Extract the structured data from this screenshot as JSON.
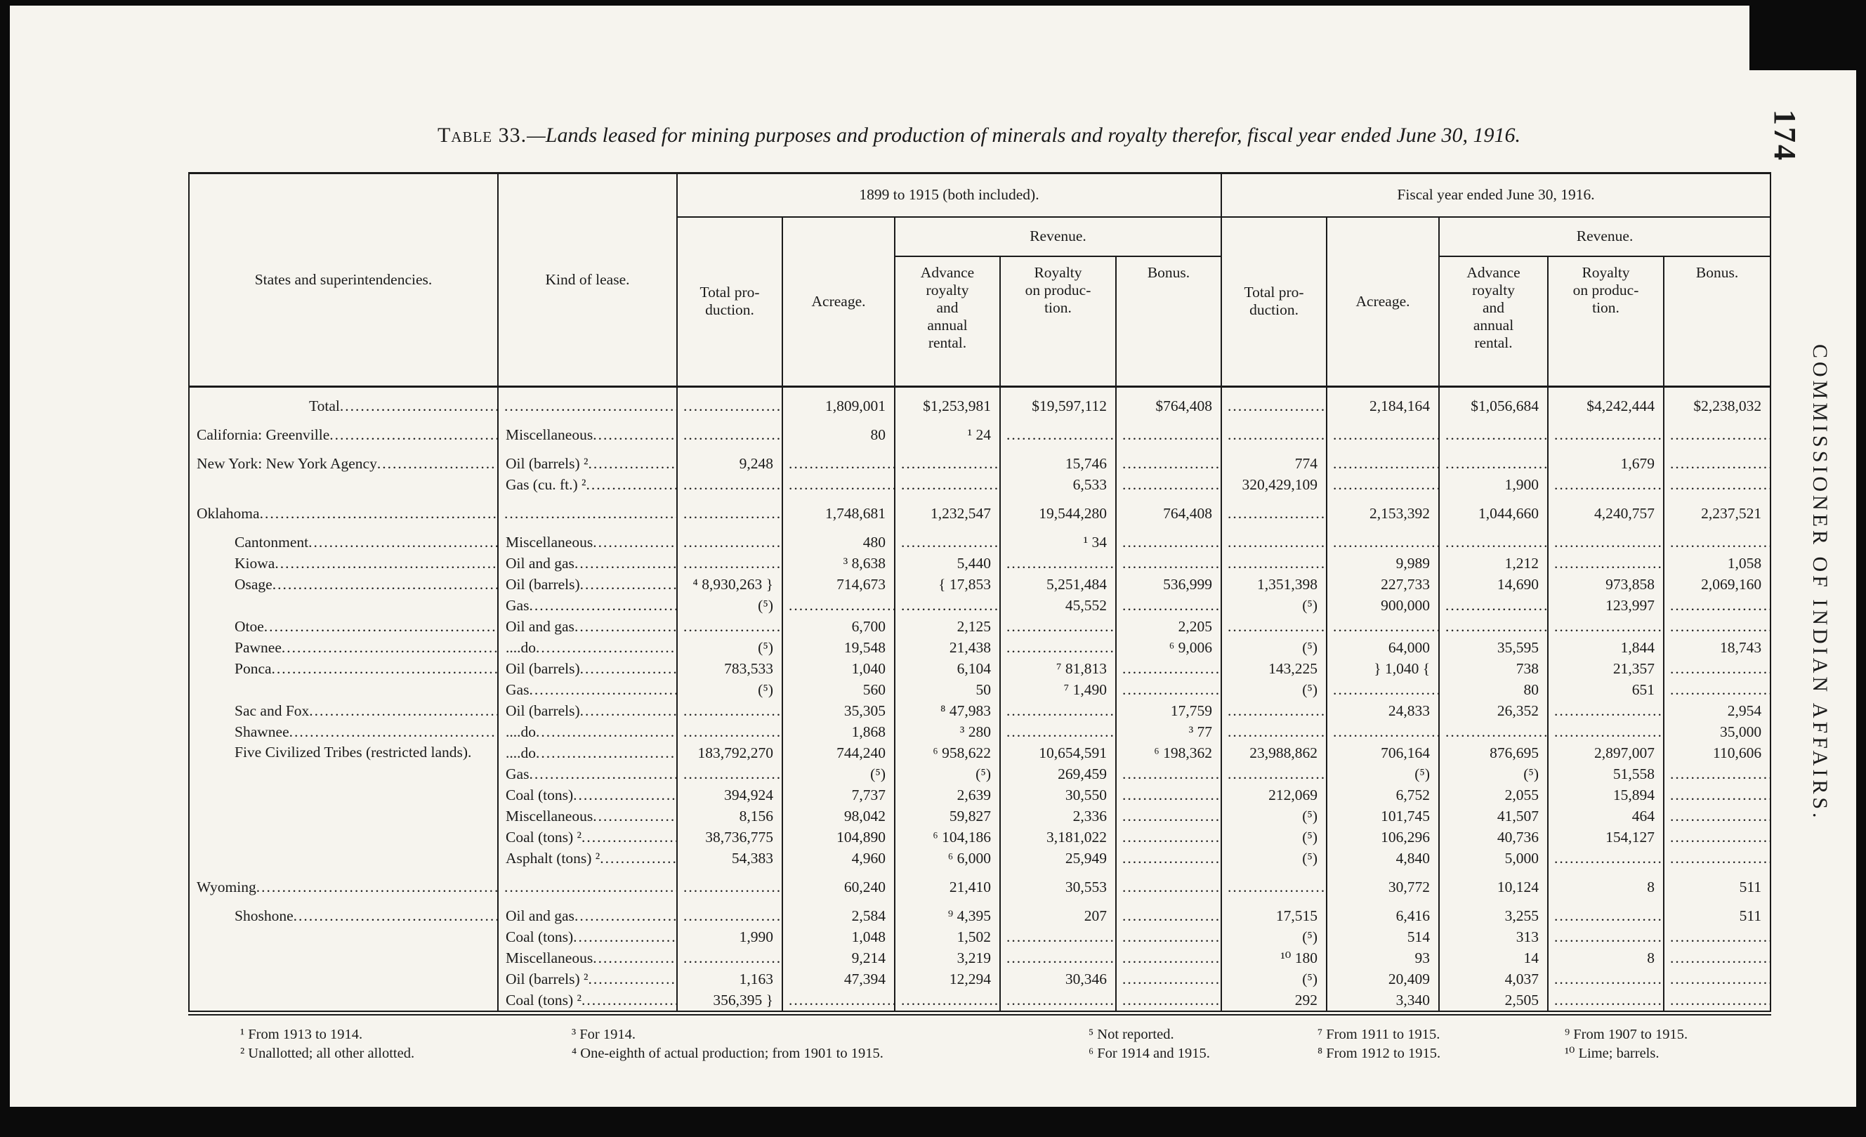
{
  "page": {
    "number": "174",
    "side_text": "COMMISSIONER OF INDIAN AFFAIRS.",
    "title_label": "Table 33.",
    "title_text": "—Lands leased for mining purposes and production of minerals and royalty therefor, fiscal year ended June 30, 1916."
  },
  "table": {
    "headers": {
      "states": "States and superintendencies.",
      "kind": "Kind of lease.",
      "group1": "1899 to 1915 (both included).",
      "group2": "Fiscal year ended June 30, 1916.",
      "revenue": "Revenue.",
      "total_production": "Total pro-\nduction.",
      "acreage": "Acreage.",
      "advance": "Advance\nroyalty\nand\nannual\nrental.",
      "royalty": "Royalty\non produc-\ntion.",
      "bonus": "Bonus."
    },
    "rows": [
      {
        "s": "Total",
        "k": "",
        "indent": 2,
        "gap": true,
        "c": [
          "",
          "1,809,001",
          "$1,253,981",
          "$19,597,112",
          "$764,408",
          "",
          "2,184,164",
          "$1,056,684",
          "$4,242,444",
          "$2,238,032"
        ]
      },
      {
        "s": "California: Greenville",
        "k": "Miscellaneous",
        "indent": 0,
        "gap": true,
        "c": [
          "",
          "80",
          "¹ 24",
          "",
          "",
          "",
          "",
          "",
          "",
          ""
        ]
      },
      {
        "s": "New York: New York Agency",
        "k": "Oil (barrels) ²",
        "indent": 0,
        "gap": true,
        "c": [
          "9,248",
          "",
          "",
          "15,746",
          "",
          "774",
          "",
          "",
          "1,679",
          ""
        ]
      },
      {
        "s": "",
        "k": "Gas (cu. ft.) ²",
        "indent": 0,
        "c": [
          "",
          "",
          "",
          "6,533",
          "",
          "320,429,109",
          "",
          "1,900",
          "",
          ""
        ]
      },
      {
        "s": "Oklahoma",
        "k": "",
        "indent": 0,
        "gap": true,
        "c": [
          "",
          "1,748,681",
          "1,232,547",
          "19,544,280",
          "764,408",
          "",
          "2,153,392",
          "1,044,660",
          "4,240,757",
          "2,237,521"
        ]
      },
      {
        "s": "Cantonment",
        "k": "Miscellaneous",
        "indent": 1,
        "gap": true,
        "c": [
          "",
          "480",
          "",
          "¹ 34",
          "",
          "",
          "",
          "",
          "",
          ""
        ]
      },
      {
        "s": "Kiowa",
        "k": "Oil and gas",
        "indent": 1,
        "c": [
          "",
          "³ 8,638",
          "5,440",
          "",
          "",
          "",
          "9,989",
          "1,212",
          "",
          "1,058"
        ]
      },
      {
        "s": "Osage",
        "k": "Oil (barrels)",
        "indent": 1,
        "c": [
          "⁴ 8,930,263 }",
          "714,673",
          "{ 17,853",
          "5,251,484",
          "536,999",
          "1,351,398",
          "227,733",
          "14,690",
          "973,858",
          "2,069,160"
        ]
      },
      {
        "s": "",
        "k": "Gas",
        "indent": 1,
        "c": [
          "(⁵)",
          "",
          "",
          "45,552",
          "",
          "(⁵)",
          "900,000",
          "",
          "123,997",
          ""
        ]
      },
      {
        "s": "Otoe",
        "k": "Oil and gas",
        "indent": 1,
        "c": [
          "",
          "6,700",
          "2,125",
          "",
          "2,205",
          "",
          "",
          "",
          "",
          ""
        ]
      },
      {
        "s": "Pawnee",
        "k": "....do",
        "indent": 1,
        "c": [
          "(⁵)",
          "19,548",
          "21,438",
          "",
          "⁶ 9,006",
          "(⁵)",
          "64,000",
          "35,595",
          "1,844",
          "18,743"
        ]
      },
      {
        "s": "Ponca",
        "k": "Oil (barrels)",
        "indent": 1,
        "c": [
          "783,533",
          "1,040",
          "6,104",
          "⁷ 81,813",
          "",
          "143,225",
          "} 1,040 {",
          "738",
          "21,357",
          ""
        ]
      },
      {
        "s": "",
        "k": "Gas",
        "indent": 1,
        "c": [
          "(⁵)",
          "560",
          "50",
          "⁷ 1,490",
          "",
          "(⁵)",
          "",
          "80",
          "651",
          ""
        ]
      },
      {
        "s": "Sac and Fox",
        "k": "Oil (barrels)",
        "indent": 1,
        "c": [
          "",
          "35,305",
          "⁸ 47,983",
          "",
          "17,759",
          "",
          "24,833",
          "26,352",
          "",
          "2,954"
        ]
      },
      {
        "s": "Shawnee",
        "k": "....do",
        "indent": 1,
        "c": [
          "",
          "1,868",
          "³ 280",
          "",
          "³ 77",
          "",
          "",
          "",
          "",
          "35,000"
        ]
      },
      {
        "s": "Five Civilized Tribes (restricted lands).",
        "k": "....do",
        "indent": 1,
        "c": [
          "183,792,270",
          "744,240",
          "⁶ 958,622",
          "10,654,591",
          "⁶ 198,362",
          "23,988,862",
          "706,164",
          "876,695",
          "2,897,007",
          "110,606"
        ]
      },
      {
        "s": "",
        "k": "Gas",
        "indent": 1,
        "c": [
          "",
          "(⁵)",
          "(⁵)",
          "269,459",
          "",
          "",
          "(⁵)",
          "(⁵)",
          "51,558",
          ""
        ]
      },
      {
        "s": "",
        "k": "Coal (tons)",
        "indent": 1,
        "c": [
          "394,924",
          "7,737",
          "2,639",
          "30,550",
          "",
          "212,069",
          "6,752",
          "2,055",
          "15,894",
          ""
        ]
      },
      {
        "s": "",
        "k": "Miscellaneous",
        "indent": 1,
        "c": [
          "8,156",
          "98,042",
          "59,827",
          "2,336",
          "",
          "(⁵)",
          "101,745",
          "41,507",
          "464",
          ""
        ]
      },
      {
        "s": "",
        "k": "Coal (tons) ²",
        "indent": 1,
        "c": [
          "38,736,775",
          "104,890",
          "⁶ 104,186",
          "3,181,022",
          "",
          "(⁵)",
          "106,296",
          "40,736",
          "154,127",
          ""
        ]
      },
      {
        "s": "",
        "k": "Asphalt (tons) ²",
        "indent": 1,
        "c": [
          "54,383",
          "4,960",
          "⁶ 6,000",
          "25,949",
          "",
          "(⁵)",
          "4,840",
          "5,000",
          "",
          ""
        ]
      },
      {
        "s": "Wyoming",
        "k": "",
        "indent": 0,
        "gap": true,
        "c": [
          "",
          "60,240",
          "21,410",
          "30,553",
          "",
          "",
          "30,772",
          "10,124",
          "8",
          "511"
        ]
      },
      {
        "s": "Shoshone",
        "k": "Oil and gas",
        "indent": 1,
        "gap": true,
        "c": [
          "",
          "2,584",
          "⁹ 4,395",
          "207",
          "",
          "17,515",
          "6,416",
          "3,255",
          "",
          "511"
        ]
      },
      {
        "s": "",
        "k": "Coal (tons)",
        "indent": 1,
        "c": [
          "1,990",
          "1,048",
          "1,502",
          "",
          "",
          "(⁵)",
          "514",
          "313",
          "",
          ""
        ]
      },
      {
        "s": "",
        "k": "Miscellaneous",
        "indent": 1,
        "c": [
          "",
          "9,214",
          "3,219",
          "",
          "",
          "¹⁰ 180",
          "93",
          "14",
          "8",
          ""
        ]
      },
      {
        "s": "",
        "k": "Oil (barrels) ²",
        "indent": 1,
        "c": [
          "1,163",
          "47,394",
          "12,294",
          "30,346",
          "",
          "(⁵)",
          "20,409",
          "4,037",
          "",
          ""
        ]
      },
      {
        "s": "",
        "k": "Coal (tons) ²",
        "indent": 1,
        "c": [
          "356,395 }",
          "",
          "",
          "",
          "",
          "292",
          "3,340",
          "2,505",
          "",
          ""
        ]
      }
    ]
  },
  "footnotes": [
    [
      "¹ From 1913 to 1914.",
      "² Unallotted; all other allotted."
    ],
    [
      "³ For 1914.",
      "⁴ One-eighth of actual production; from 1901 to 1915."
    ],
    [
      "⁵ Not reported.",
      "⁶ For 1914 and 1915."
    ],
    [
      "⁷ From 1911 to 1915.",
      "⁸ From 1912 to 1915."
    ],
    [
      "⁹ From 1907 to 1915.",
      "¹⁰ Lime; barrels."
    ]
  ]
}
